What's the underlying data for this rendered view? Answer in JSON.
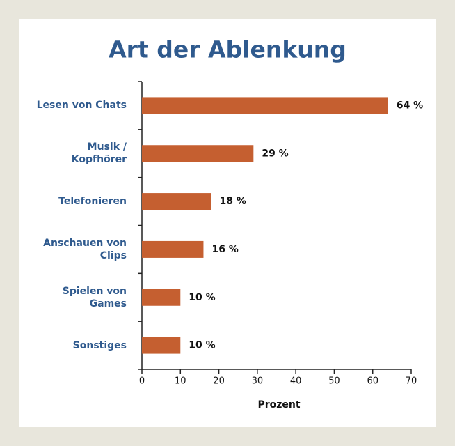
{
  "chart_data": {
    "type": "bar",
    "orientation": "horizontal",
    "title": "Art der Ablenkung",
    "categories": [
      "Lesen von Chats",
      "Musik / Kopfhörer",
      "Telefonieren",
      "Anschauen von Clips",
      "Spielen von Games",
      "Sonstiges"
    ],
    "values": [
      64,
      29,
      18,
      16,
      10,
      10
    ],
    "value_labels": [
      "64 %",
      "29 %",
      "18 %",
      "16 %",
      "10 %",
      "10 %"
    ],
    "color": "#c55f30",
    "xlabel": "Prozent",
    "xlim": [
      0,
      70
    ],
    "xticks": [
      0,
      10,
      20,
      30,
      40,
      50,
      60,
      70
    ],
    "grid": false
  }
}
